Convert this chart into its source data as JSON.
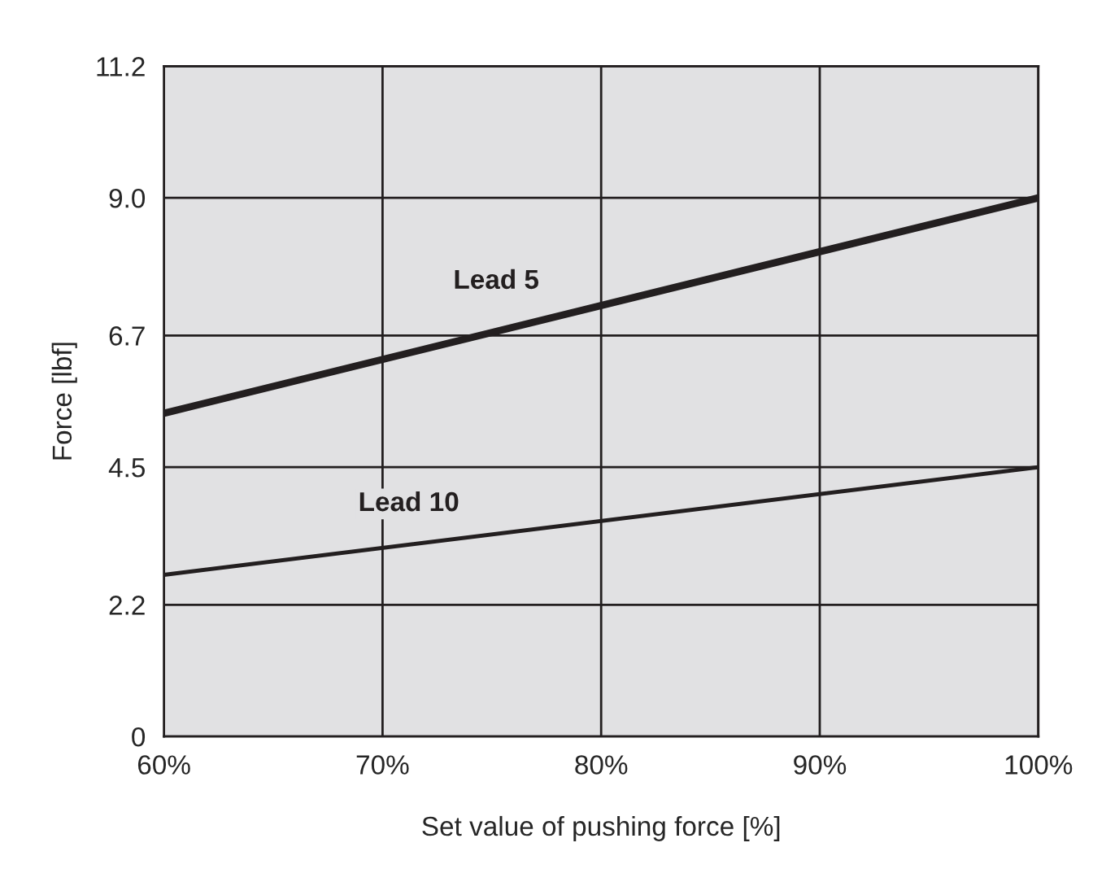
{
  "chart_data": {
    "type": "line",
    "xlabel": "Set value of pushing force [%]",
    "ylabel": "Force [lbf]",
    "x": [
      60,
      100
    ],
    "series": [
      {
        "name": "Lead 5",
        "color": "#231f20",
        "values": [
          5.4,
          9.0
        ]
      },
      {
        "name": "Lead 10",
        "color": "#231f20",
        "values": [
          2.7,
          4.5
        ]
      }
    ],
    "xlim": [
      60,
      100
    ],
    "xticks": [
      {
        "value": 60,
        "label": "60%"
      },
      {
        "value": 70,
        "label": "70%"
      },
      {
        "value": 80,
        "label": "80%"
      },
      {
        "value": 90,
        "label": "90%"
      },
      {
        "value": 100,
        "label": "100%"
      }
    ],
    "ylim": [
      0,
      11.2
    ],
    "yticks": [
      0,
      2.2,
      4.5,
      6.7,
      {
        "value": 9.0,
        "label": "9.0"
      },
      11.2
    ],
    "grid": true,
    "legend": false,
    "marker": "none",
    "line_style": "solid"
  }
}
